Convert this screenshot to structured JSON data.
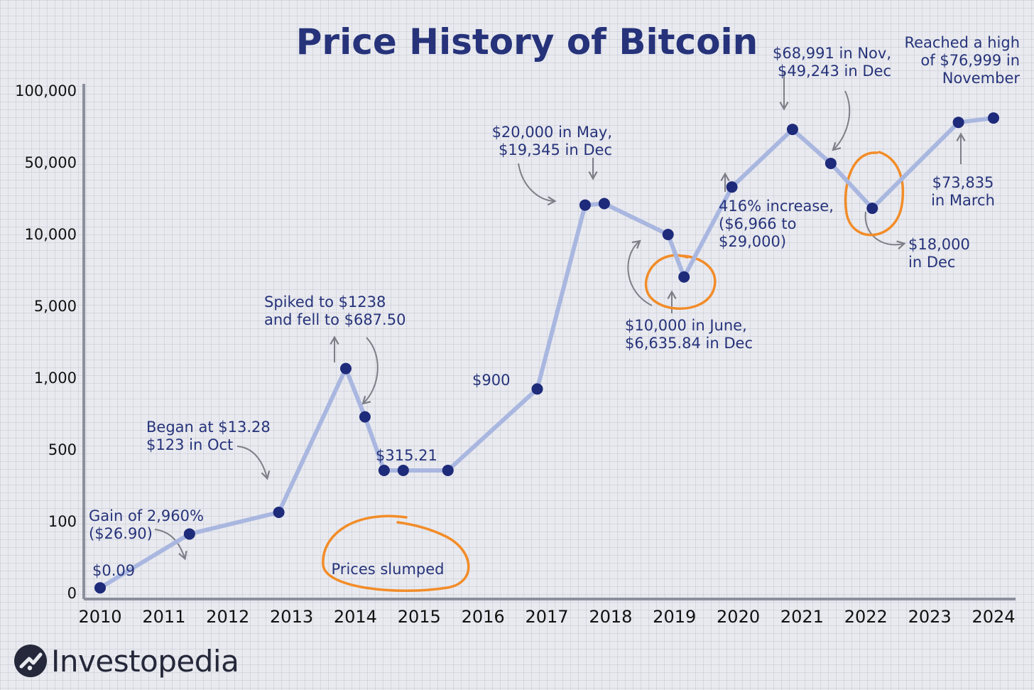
{
  "chart_data": {
    "type": "line",
    "title": "Price History of Bitcoin",
    "xlabel": "",
    "ylabel": "",
    "y_scale": "log",
    "x_ticks": [
      "2010",
      "2011",
      "2012",
      "2013",
      "2014",
      "2015",
      "2016",
      "2017",
      "2018",
      "2019",
      "2020",
      "2021",
      "2022",
      "2023",
      "2024"
    ],
    "y_ticks": [
      "0",
      "100",
      "500",
      "1,000",
      "5,000",
      "10,000",
      "50,000",
      "100,000"
    ],
    "points": [
      {
        "x": 2010.0,
        "y": 0.09
      },
      {
        "x": 2011.4,
        "y": 26.9
      },
      {
        "x": 2012.8,
        "y": 123
      },
      {
        "x": 2013.85,
        "y": 1238
      },
      {
        "x": 2014.15,
        "y": 687.5
      },
      {
        "x": 2014.45,
        "y": 315.21
      },
      {
        "x": 2014.75,
        "y": 315.21
      },
      {
        "x": 2015.45,
        "y": 315.21
      },
      {
        "x": 2016.85,
        "y": 900
      },
      {
        "x": 2017.6,
        "y": 19345
      },
      {
        "x": 2017.9,
        "y": 20000
      },
      {
        "x": 2018.9,
        "y": 10000
      },
      {
        "x": 2019.15,
        "y": 6635.84
      },
      {
        "x": 2019.9,
        "y": 29000
      },
      {
        "x": 2020.85,
        "y": 68991
      },
      {
        "x": 2021.45,
        "y": 49243
      },
      {
        "x": 2022.1,
        "y": 18000
      },
      {
        "x": 2023.45,
        "y": 73835
      },
      {
        "x": 2024.0,
        "y": 76999
      }
    ],
    "annotations": [
      {
        "lines": [
          "$0.09"
        ]
      },
      {
        "lines": [
          "Gain of 2,960%",
          "($26.90)"
        ]
      },
      {
        "lines": [
          "Began at $13.28",
          "$123 in Oct"
        ]
      },
      {
        "lines": [
          "Spiked to $1238",
          "and fell to $687.50"
        ]
      },
      {
        "lines": [
          "Prices slumped"
        ]
      },
      {
        "lines": [
          "$315.21"
        ]
      },
      {
        "lines": [
          "$900"
        ]
      },
      {
        "lines": [
          "$20,000 in May,",
          "$19,345 in Dec"
        ]
      },
      {
        "lines": [
          "$10,000 in June,",
          "$6,635.84 in Dec"
        ]
      },
      {
        "lines": [
          "416% increase,",
          "($6,966 to",
          "$29,000)"
        ]
      },
      {
        "lines": [
          "$68,991 in Nov,",
          "$49,243 in Dec"
        ]
      },
      {
        "lines": [
          "$18,000",
          "in Dec"
        ]
      },
      {
        "lines": [
          "Reached a high",
          "of $76,999 in",
          "November"
        ]
      },
      {
        "lines": [
          "$73,835",
          "in March"
        ]
      }
    ],
    "colors": {
      "line": "#a9b7e0",
      "point": "#1e2a7a",
      "text": "#26337a",
      "highlight": "#f28c28",
      "arrow": "#7d7f88"
    }
  },
  "brand": {
    "name": "Investopedia",
    "logo_icon": "investopedia-logo-icon"
  }
}
